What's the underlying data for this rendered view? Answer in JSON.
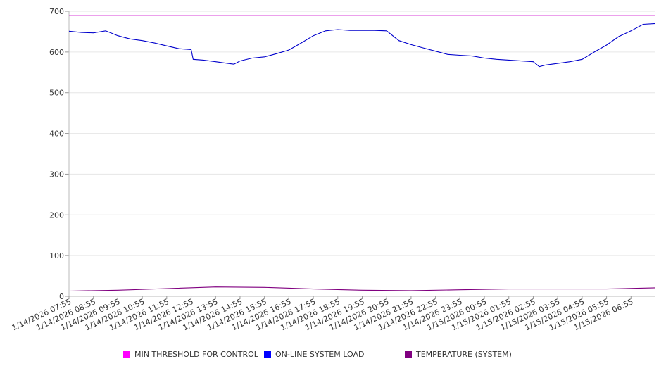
{
  "chart_data": {
    "type": "line",
    "title": "",
    "xlabel": "",
    "ylabel": "",
    "ylim": [
      0,
      700
    ],
    "yticks": [
      0,
      100,
      200,
      300,
      400,
      500,
      600,
      700
    ],
    "grid": true,
    "legend_position": "bottom",
    "x_tick_labels": [
      "1/14/2026 07:55",
      "1/14/2026 08:55",
      "1/14/2026 09:55",
      "1/14/2026 10:55",
      "1/14/2026 11:55",
      "1/14/2026 12:55",
      "1/14/2026 13:55",
      "1/14/2026 14:55",
      "1/14/2026 15:55",
      "1/14/2026 16:55",
      "1/14/2026 17:55",
      "1/14/2026 18:55",
      "1/14/2026 19:55",
      "1/14/2026 20:55",
      "1/14/2026 21:55",
      "1/14/2026 22:55",
      "1/14/2026 23:55",
      "1/15/2026 00:55",
      "1/15/2026 01:55",
      "1/15/2026 02:55",
      "1/15/2026 03:55",
      "1/15/2026 04:55",
      "1/15/2026 05:55",
      "1/15/2026 06:55"
    ],
    "series": [
      {
        "name": "MIN THRESHOLD FOR CONTROL",
        "color": "#cc00cc",
        "swatch": "#ff00ff",
        "x": [
          "1/14/2026 07:55",
          "1/15/2026 07:55"
        ],
        "values": [
          690,
          690
        ]
      },
      {
        "name": "ON-LINE SYSTEM LOAD",
        "color": "#0000cc",
        "swatch": "#0000ff",
        "x": [
          "1/14/2026 07:55",
          "1/14/2026 08:25",
          "1/14/2026 08:55",
          "1/14/2026 09:25",
          "1/14/2026 09:55",
          "1/14/2026 10:25",
          "1/14/2026 10:55",
          "1/14/2026 11:25",
          "1/14/2026 11:55",
          "1/14/2026 12:25",
          "1/14/2026 12:55",
          "1/14/2026 13:00",
          "1/14/2026 13:25",
          "1/14/2026 13:55",
          "1/14/2026 14:25",
          "1/14/2026 14:40",
          "1/14/2026 14:55",
          "1/14/2026 15:25",
          "1/14/2026 15:55",
          "1/14/2026 16:25",
          "1/14/2026 16:55",
          "1/14/2026 17:25",
          "1/14/2026 17:55",
          "1/14/2026 18:25",
          "1/14/2026 18:55",
          "1/14/2026 19:25",
          "1/14/2026 19:55",
          "1/14/2026 20:25",
          "1/14/2026 20:55",
          "1/14/2026 21:25",
          "1/14/2026 21:55",
          "1/14/2026 22:25",
          "1/14/2026 22:55",
          "1/14/2026 23:25",
          "1/14/2026 23:55",
          "1/15/2026 00:25",
          "1/15/2026 00:55",
          "1/15/2026 01:25",
          "1/15/2026 01:55",
          "1/15/2026 02:25",
          "1/15/2026 02:55",
          "1/15/2026 03:10",
          "1/15/2026 03:25",
          "1/15/2026 03:55",
          "1/15/2026 04:25",
          "1/15/2026 04:55",
          "1/15/2026 05:25",
          "1/15/2026 05:55",
          "1/15/2026 06:25",
          "1/15/2026 06:55",
          "1/15/2026 07:25",
          "1/15/2026 07:55"
        ],
        "values": [
          651,
          648,
          647,
          652,
          640,
          632,
          628,
          622,
          615,
          608,
          606,
          582,
          580,
          576,
          572,
          570,
          578,
          585,
          588,
          596,
          605,
          622,
          640,
          652,
          655,
          653,
          653,
          653,
          652,
          628,
          618,
          610,
          602,
          594,
          592,
          590,
          585,
          582,
          580,
          578,
          576,
          564,
          568,
          572,
          576,
          582,
          600,
          617,
          638,
          652,
          668,
          670
        ]
      },
      {
        "name": "TEMPERATURE (SYSTEM)",
        "color": "#800080",
        "swatch": "#800080",
        "x": [
          "1/14/2026 07:55",
          "1/14/2026 09:55",
          "1/14/2026 11:55",
          "1/14/2026 13:55",
          "1/14/2026 15:55",
          "1/14/2026 17:55",
          "1/14/2026 19:55",
          "1/14/2026 21:55",
          "1/14/2026 23:55",
          "1/15/2026 01:55",
          "1/15/2026 03:55",
          "1/15/2026 05:55",
          "1/15/2026 07:55"
        ],
        "values": [
          13,
          15,
          19,
          23,
          22,
          18,
          15,
          14,
          16,
          18,
          18,
          18,
          21
        ]
      }
    ]
  }
}
